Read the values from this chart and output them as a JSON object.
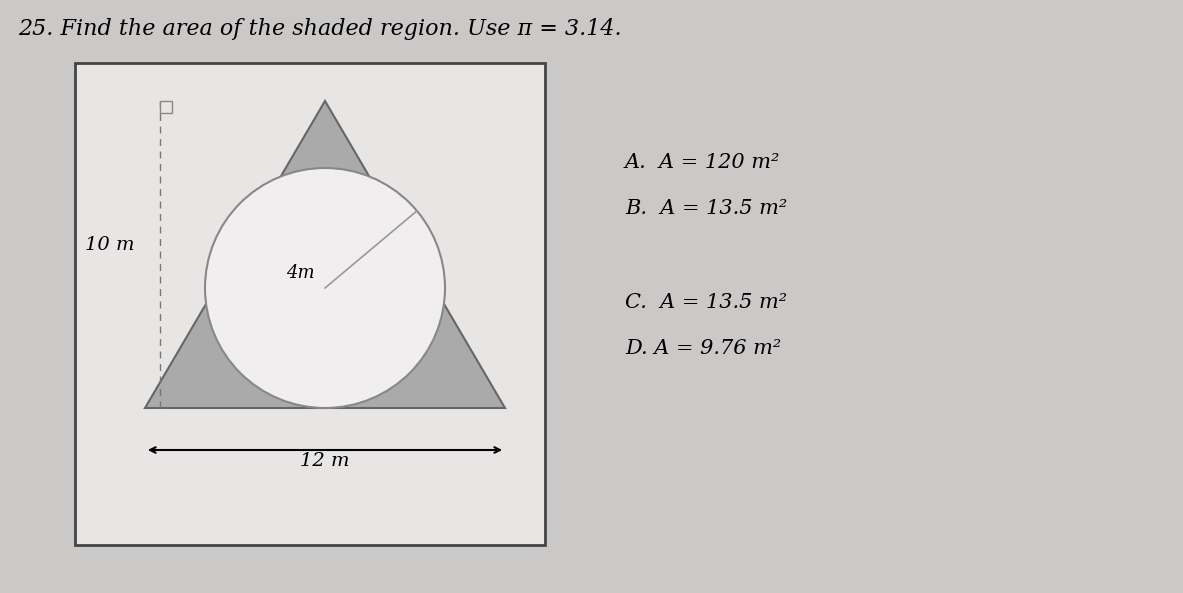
{
  "background_color": "#cbc8c8",
  "title": "25. Find the area of the shaded region. Use π = 3.14.",
  "title_fontsize": 16,
  "box_bg_color": "#e8e5e5",
  "box_edge_color": "#444444",
  "shaded_color": "#aaaaaa",
  "circle_color": "#f0eeee",
  "circle_edge_color": "#888888",
  "label_10m": "10 m",
  "label_4m": "4m",
  "label_12m": "12 m",
  "label_fontsize": 13,
  "options": [
    [
      "A.",
      " A = 120 m²"
    ],
    [
      "B.",
      " A = 13.5 m²"
    ],
    [
      "C.",
      " A = 13.5 m²"
    ],
    [
      "D.",
      "A = 9.76 m²"
    ]
  ],
  "options_fontsize": 15
}
